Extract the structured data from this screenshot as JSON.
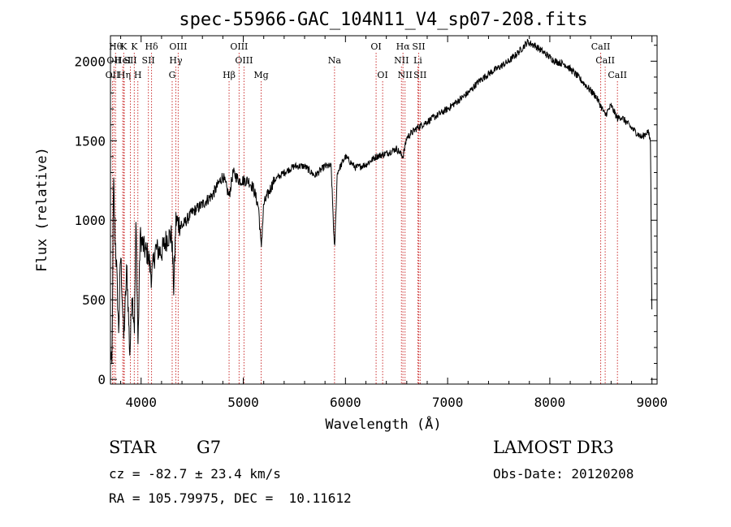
{
  "chart_data": {
    "type": "line",
    "title": "spec-55966-GAC_104N11_V4_sp07-208.fits",
    "xlabel": "Wavelength (Å)",
    "ylabel": "Flux (relative)",
    "xlim": [
      3700,
      9050
    ],
    "ylim": [
      -30,
      2160
    ],
    "xticks": [
      4000,
      5000,
      6000,
      7000,
      8000,
      9000
    ],
    "yticks": [
      0,
      500,
      1000,
      1500,
      2000
    ],
    "series": [
      {
        "name": "spectrum",
        "anchors": [
          [
            3700,
            180
          ],
          [
            3715,
            60
          ],
          [
            3730,
            1250
          ],
          [
            3745,
            900
          ],
          [
            3760,
            700
          ],
          [
            3780,
            300
          ],
          [
            3800,
            800
          ],
          [
            3830,
            250
          ],
          [
            3860,
            700
          ],
          [
            3890,
            150
          ],
          [
            3910,
            550
          ],
          [
            3935,
            330
          ],
          [
            3950,
            1000
          ],
          [
            3970,
            200
          ],
          [
            3990,
            900
          ],
          [
            4030,
            820
          ],
          [
            4070,
            780
          ],
          [
            4102,
            640
          ],
          [
            4140,
            820
          ],
          [
            4200,
            800
          ],
          [
            4260,
            900
          ],
          [
            4300,
            900
          ],
          [
            4320,
            560
          ],
          [
            4340,
            1000
          ],
          [
            4400,
            960
          ],
          [
            4500,
            1050
          ],
          [
            4600,
            1100
          ],
          [
            4700,
            1160
          ],
          [
            4800,
            1280
          ],
          [
            4861,
            1150
          ],
          [
            4900,
            1300
          ],
          [
            4960,
            1250
          ],
          [
            5050,
            1250
          ],
          [
            5100,
            1200
          ],
          [
            5150,
            1080
          ],
          [
            5175,
            820
          ],
          [
            5200,
            1100
          ],
          [
            5300,
            1250
          ],
          [
            5400,
            1300
          ],
          [
            5500,
            1340
          ],
          [
            5600,
            1340
          ],
          [
            5700,
            1280
          ],
          [
            5800,
            1340
          ],
          [
            5860,
            1340
          ],
          [
            5893,
            800
          ],
          [
            5920,
            1300
          ],
          [
            6000,
            1400
          ],
          [
            6100,
            1330
          ],
          [
            6200,
            1350
          ],
          [
            6300,
            1400
          ],
          [
            6400,
            1420
          ],
          [
            6500,
            1450
          ],
          [
            6563,
            1400
          ],
          [
            6600,
            1520
          ],
          [
            6700,
            1580
          ],
          [
            6800,
            1620
          ],
          [
            6900,
            1660
          ],
          [
            7000,
            1700
          ],
          [
            7100,
            1750
          ],
          [
            7200,
            1800
          ],
          [
            7300,
            1870
          ],
          [
            7400,
            1920
          ],
          [
            7500,
            1960
          ],
          [
            7600,
            2000
          ],
          [
            7700,
            2060
          ],
          [
            7780,
            2120
          ],
          [
            7850,
            2100
          ],
          [
            7950,
            2050
          ],
          [
            8050,
            2000
          ],
          [
            8150,
            1980
          ],
          [
            8250,
            1920
          ],
          [
            8350,
            1850
          ],
          [
            8450,
            1780
          ],
          [
            8498,
            1720
          ],
          [
            8542,
            1660
          ],
          [
            8600,
            1720
          ],
          [
            8662,
            1640
          ],
          [
            8700,
            1650
          ],
          [
            8800,
            1580
          ],
          [
            8900,
            1520
          ],
          [
            8960,
            1560
          ],
          [
            8985,
            1500
          ],
          [
            9000,
            380
          ]
        ]
      }
    ],
    "lines": [
      {
        "w": 3750,
        "label": "Hθ",
        "row": 1
      },
      {
        "w": 3734,
        "label": "OII",
        "row": 2
      },
      {
        "w": 3720,
        "label": "OII",
        "row": 3
      },
      {
        "w": 3830,
        "label": "K",
        "row": 1
      },
      {
        "w": 3820,
        "label": "HeI",
        "row": 2
      },
      {
        "w": 3835,
        "label": "Hη",
        "row": 3
      },
      {
        "w": 3933,
        "label": "K",
        "row": 1
      },
      {
        "w": 3895,
        "label": "SII",
        "row": 2
      },
      {
        "w": 3968,
        "label": "H",
        "row": 3
      },
      {
        "w": 4102,
        "label": "Hδ",
        "row": 1
      },
      {
        "w": 4071,
        "label": "SII",
        "row": 2
      },
      {
        "w": 4363,
        "label": "OIII",
        "row": 1
      },
      {
        "w": 4340,
        "label": "Hγ",
        "row": 2
      },
      {
        "w": 4304,
        "label": "G",
        "row": 3
      },
      {
        "w": 4861,
        "label": "Hβ",
        "row": 3
      },
      {
        "w": 4959,
        "label": "OIII",
        "row": 1
      },
      {
        "w": 5007,
        "label": "OIII",
        "row": 2
      },
      {
        "w": 5175,
        "label": "Mg",
        "row": 3
      },
      {
        "w": 5893,
        "label": "Na",
        "row": 2
      },
      {
        "w": 6300,
        "label": "OI",
        "row": 1
      },
      {
        "w": 6364,
        "label": "OI",
        "row": 3
      },
      {
        "w": 6563,
        "label": "Hα",
        "row": 1
      },
      {
        "w": 6548,
        "label": "NII",
        "row": 2
      },
      {
        "w": 6583,
        "label": "NII",
        "row": 3
      },
      {
        "w": 6717,
        "label": "SII",
        "row": 1
      },
      {
        "w": 6708,
        "label": "Li",
        "row": 2
      },
      {
        "w": 6731,
        "label": "SII",
        "row": 3
      },
      {
        "w": 8498,
        "label": "CaII",
        "row": 1
      },
      {
        "w": 8542,
        "label": "CaII",
        "row": 2
      },
      {
        "w": 8662,
        "label": "CaII",
        "row": 3
      }
    ],
    "line_color": "#cc3333",
    "trace_color": "#000000"
  },
  "info": {
    "obj_class": "STAR",
    "subclass": "G7",
    "survey": "LAMOST DR3",
    "cz": "cz = -82.7 ± 23.4 km/s",
    "obs_date": "Obs-Date: 20120208",
    "radec": "RA = 105.79975, DEC =  10.11612"
  }
}
